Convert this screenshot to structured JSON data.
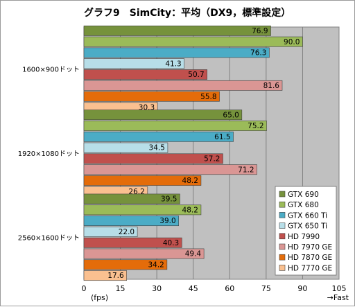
{
  "chart_data": {
    "type": "bar",
    "orientation": "horizontal",
    "title": "グラフ9　SimCity：平均（DX9，標準設定）",
    "categories": [
      "1600×900ドット",
      "1920×1080ドット",
      "2560×1600ドット"
    ],
    "series": [
      {
        "name": "GTX 690",
        "color": "#76923c",
        "values": [
          76.9,
          65.0,
          39.5
        ]
      },
      {
        "name": "GTX 680",
        "color": "#9bbb59",
        "values": [
          90.0,
          75.2,
          48.2
        ]
      },
      {
        "name": "GTX 660 Ti",
        "color": "#4bacc6",
        "values": [
          76.3,
          61.5,
          39.0
        ]
      },
      {
        "name": "GTX 650 Ti",
        "color": "#b7dee8",
        "values": [
          41.3,
          34.5,
          22.0
        ]
      },
      {
        "name": "HD 7990",
        "color": "#c0504d",
        "values": [
          50.7,
          57.2,
          40.3
        ]
      },
      {
        "name": "HD 7970 GE",
        "color": "#da9694",
        "values": [
          81.6,
          71.2,
          49.4
        ]
      },
      {
        "name": "HD 7870 GE",
        "color": "#e46c0a",
        "values": [
          55.8,
          48.2,
          34.2
        ]
      },
      {
        "name": "HD 7770 GE",
        "color": "#fac090",
        "values": [
          30.3,
          26.2,
          17.6
        ]
      }
    ],
    "xlim": [
      0,
      105
    ],
    "xticks": [
      0,
      15,
      30,
      45,
      60,
      75,
      90,
      105
    ],
    "xlabel": "(fps)",
    "x_direction_label": "→Fast",
    "grid": true,
    "legend_position": "bottom-right",
    "plot_background": "#c0c0c0"
  }
}
